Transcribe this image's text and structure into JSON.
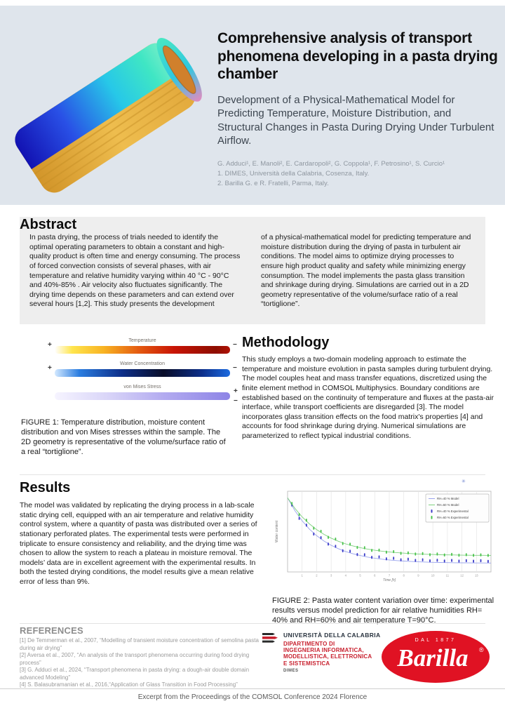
{
  "header": {
    "title": "Comprehensive analysis of transport phenomena developing in a pasta drying chamber",
    "subtitle": "Development of a Physical-Mathematical Model for Predicting Temperature, Moisture Distribution, and Structural Changes in Pasta During Drying Under Turbulent Airflow.",
    "authors": "G. Adduci¹, E. Manoli², E. Cardaropoli², G. Coppola¹, F. Petrosino¹, S. Curcio¹",
    "affil1": "1. DIMES, Università della Calabria, Cosenza, Italy.",
    "affil2": "2. Barilla G. e R. Fratelli, Parma, Italy."
  },
  "abstract": {
    "title": "Abstract",
    "col1": "In pasta drying, the process of trials needed to identify the optimal operating parameters to obtain a constant and high-quality product is often time and energy consuming. The process of forced convection consists of several phases, with air temperature and relative humidity varying within 40 °C - 90°C and 40%-85% . Air velocity also fluctuates significantly. The drying time depends on these parameters and can extend over several hours [1,2]. This study presents the development",
    "col2": "of a physical-mathematical model for predicting temperature and moisture distribution during the drying of pasta in turbulent air conditions. The model aims to optimize drying processes to ensure high product quality and safety while minimizing energy consumption. The model implements the pasta glass transition and shrinkage during drying. Simulations are carried out in a 2D geometry representative of the volume/surface ratio of a real “tortiglione”."
  },
  "figure1": {
    "bars": [
      {
        "label": "Temperature",
        "sign_left": "+",
        "sign_right": "−",
        "sign_right_below": ""
      },
      {
        "label": "Water Concentration",
        "sign_left": "+",
        "sign_right": "−",
        "sign_right_below": ""
      },
      {
        "label": "von Mises Stress",
        "sign_left": "",
        "sign_right": "+",
        "sign_right_below": "−"
      }
    ],
    "caption": "FIGURE 1: Temperature distribution, moisture content distribution and von Mises stresses within the sample. The 2D geometry is representative of the volume/surface ratio of a real “tortiglione”."
  },
  "methodology": {
    "title": "Methodology",
    "body": "This study employs a two-domain modeling approach to estimate the temperature and moisture evolution in pasta samples during turbulent drying. The model couples heat and mass transfer equations, discretized using the finite element method in COMSOL Multiphysics. Boundary conditions are established based on the continuity of temperature and fluxes at the pasta-air interface, while transport coefficients are disregarded [3]. The model incorporates glass transition effects on the food matrix's properties [4] and accounts for food shrinkage during drying. Numerical simulations are parameterized to reflect typical industrial conditions."
  },
  "results": {
    "title": "Results",
    "body": "The model was validated by replicating the drying process in a lab-scale static drying cell, equipped with an air temperature and relative humidity control system, where a quantity of pasta was distributed over a series of stationary perforated plates. The experimental tests were performed in triplicate to ensure consistency and reliability, and the drying time was chosen to allow the system to reach a plateau in moisture removal. The models’ data are in excellent agreement with the experimental results. In both the tested drying conditions, the model results give a mean relative error of less than 9%."
  },
  "figure2": {
    "caption": "FIGURE 2:  Pasta water content variation over time: experimental results versus model prediction for air relative humidities RH= 40% and RH=60% and air temperature T=90°C.",
    "annotation": "✳"
  },
  "chart_data": {
    "type": "line",
    "title": "",
    "xlabel": "Time [h]",
    "ylabel": "Water content",
    "xlim": [
      0,
      14
    ],
    "ylim": [
      0.1,
      1.08
    ],
    "xticks": [
      1,
      2,
      3,
      4,
      5,
      6,
      7,
      8,
      9,
      10,
      11,
      12,
      13
    ],
    "grid": true,
    "legend_position": "top-right",
    "x_model": [
      0,
      0.5,
      1,
      1.5,
      2,
      2.5,
      3,
      3.5,
      4,
      4.5,
      5,
      5.5,
      6,
      6.5,
      7,
      7.5,
      8,
      8.5,
      9,
      9.5,
      10,
      10.5,
      11,
      11.5,
      12,
      12.5,
      13,
      13.5,
      14
    ],
    "series": [
      {
        "name": "RH=40 % Model",
        "style": "line",
        "color": "#9aa4ee",
        "values": [
          1.0,
          0.845,
          0.721,
          0.621,
          0.541,
          0.476,
          0.424,
          0.382,
          0.348,
          0.321,
          0.299,
          0.281,
          0.267,
          0.255,
          0.246,
          0.238,
          0.232,
          0.227,
          0.223,
          0.22,
          0.217,
          0.215,
          0.213,
          0.212,
          0.211,
          0.21,
          0.209,
          0.209,
          0.208
        ]
      },
      {
        "name": "RH=60 % Model",
        "style": "line",
        "color": "#7ed07e",
        "values": [
          1.0,
          0.873,
          0.769,
          0.684,
          0.615,
          0.557,
          0.511,
          0.472,
          0.441,
          0.416,
          0.395,
          0.378,
          0.363,
          0.352,
          0.342,
          0.335,
          0.328,
          0.323,
          0.318,
          0.315,
          0.312,
          0.309,
          0.307,
          0.306,
          0.304,
          0.303,
          0.302,
          0.302,
          0.301
        ]
      },
      {
        "name": "RH=40 % Experimental",
        "style": "scatter",
        "color": "#3a3ac8",
        "x": [
          0.3,
          0.8,
          1.3,
          1.8,
          2.3,
          2.8,
          3.3,
          3.8,
          4.3,
          4.8,
          5.3,
          5.8,
          6.3,
          6.8,
          7.3,
          7.8,
          8.3,
          8.8,
          9.3,
          9.8,
          10.3,
          10.8,
          11.3,
          11.8,
          12.3,
          12.8,
          13.3,
          13.8
        ],
        "values": [
          0.912,
          0.75,
          0.668,
          0.56,
          0.516,
          0.438,
          0.412,
          0.357,
          0.351,
          0.311,
          0.309,
          0.277,
          0.282,
          0.259,
          0.266,
          0.247,
          0.255,
          0.24,
          0.247,
          0.235,
          0.242,
          0.233,
          0.24,
          0.231,
          0.237,
          0.23,
          0.236,
          0.229
        ]
      },
      {
        "name": "RH=60 % Experimental",
        "style": "scatter",
        "color": "#49c24b",
        "x": [
          0.3,
          0.8,
          1.3,
          1.8,
          2.3,
          2.8,
          3.3,
          3.8,
          4.3,
          4.8,
          5.3,
          5.8,
          6.3,
          6.8,
          7.3,
          7.8,
          8.3,
          8.8,
          9.3,
          9.8,
          10.3,
          10.8,
          11.3,
          11.8,
          12.3,
          12.8,
          13.3,
          13.8
        ],
        "values": [
          0.931,
          0.796,
          0.728,
          0.631,
          0.593,
          0.52,
          0.499,
          0.445,
          0.437,
          0.397,
          0.394,
          0.362,
          0.365,
          0.34,
          0.346,
          0.326,
          0.332,
          0.317,
          0.323,
          0.31,
          0.317,
          0.306,
          0.313,
          0.303,
          0.31,
          0.302,
          0.307,
          0.301
        ]
      }
    ]
  },
  "references": {
    "title": "REFERENCES",
    "items": [
      "[1] De Temmerman et al., 2007,  “Modelling of transient moisture concentration of semolina pasta during air drying”",
      "[2] Aversa et al., 2007, “An analysis of the transport phenomena occurring during food drying process”",
      "[3] G. Adduci et al., 2024, “Transport phenomena in pasta drying: a dough-air double domain advanced Modeling”",
      "[4] S. Balasubramanian et al., 2016,“Application of Glass Transition in Food Processing”"
    ]
  },
  "logos": {
    "unical": {
      "name": "UNIVERSITÀ DELLA CALABRIA",
      "dept1": "DIPARTIMENTO DI",
      "dept2": "INGEGNERIA INFORMATICA,",
      "dept3": "MODELLISTICA, ELETTRONICA",
      "dept4": "E SISTEMISTICA",
      "acronym": "DIMES",
      "red": "#c8202e"
    },
    "barilla": {
      "name": "Barilla",
      "tagline": "DAL 1877",
      "reg": "®",
      "red": "#e01223"
    }
  },
  "footer": "Excerpt from the Proceedings of the COMSOL Conference 2024 Florence",
  "colors": {
    "header_bg": "#dfe5ec",
    "panel_bg": "#eeeeee",
    "text_dark": "#1b1b1b",
    "muted_gray": "#9a9a9a"
  }
}
